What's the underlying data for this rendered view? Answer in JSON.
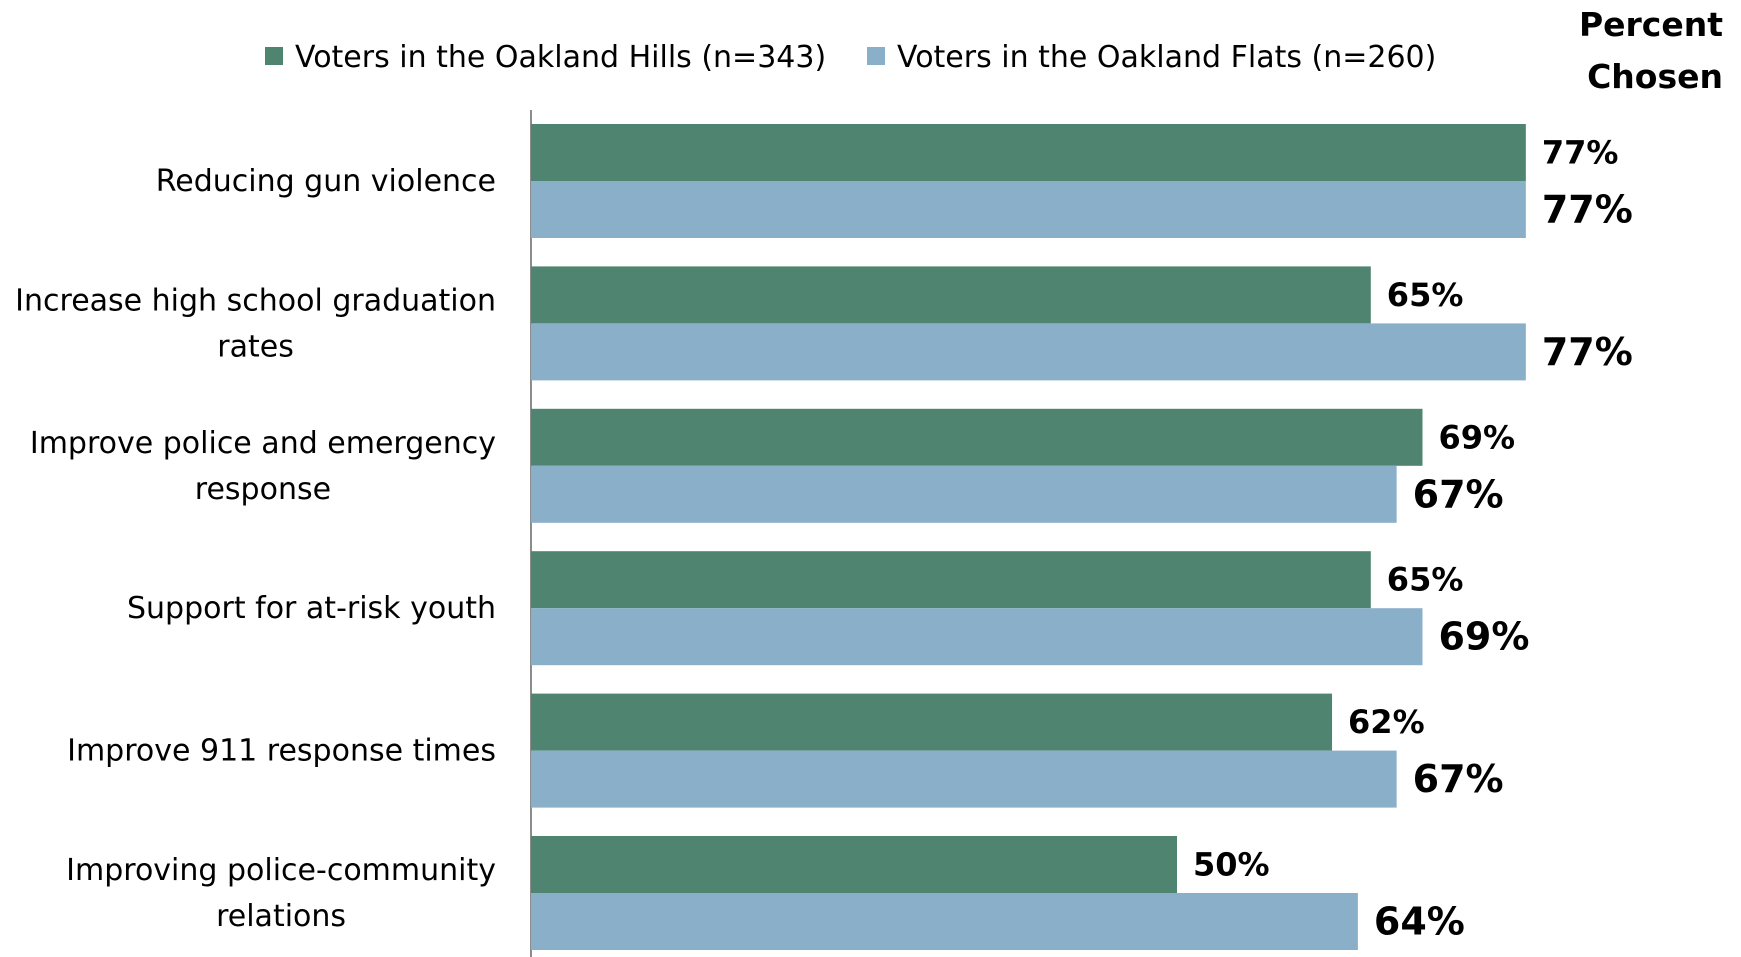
{
  "chart_data": {
    "type": "bar",
    "orientation": "horizontal",
    "title": "Percent Chosen",
    "title_lines": [
      "Percent",
      "Chosen"
    ],
    "categories": [
      "Reducing gun violence",
      "Increase high school graduation rates",
      "Improve police and emergency response",
      "Support for at-risk youth",
      "Improve 911 response times",
      "Improving police-community relations"
    ],
    "category_lines": [
      [
        "Reducing gun violence"
      ],
      [
        "Increase high school graduation",
        "rates"
      ],
      [
        "Improve police and emergency",
        "response"
      ],
      [
        "Support for at-risk youth"
      ],
      [
        "Improve 911 response times"
      ],
      [
        "Improving police-community",
        "relations"
      ]
    ],
    "series": [
      {
        "name": "Voters in the Oakland Hills (n=343)",
        "color": "#4f8570",
        "values": [
          77,
          65,
          69,
          65,
          62,
          50
        ],
        "labels": [
          "77%",
          "65%",
          "69%",
          "65%",
          "62%",
          "50%"
        ]
      },
      {
        "name": "Voters in the Oakland Flats (n=260)",
        "color": "#8aafc9",
        "values": [
          77,
          77,
          67,
          69,
          67,
          64
        ],
        "labels": [
          "77%",
          "77%",
          "67%",
          "69%",
          "67%",
          "64%"
        ]
      }
    ],
    "xlim": [
      0,
      100
    ],
    "legend_position": "top",
    "grid": false,
    "axis_line_color": "#8c8c8c"
  }
}
